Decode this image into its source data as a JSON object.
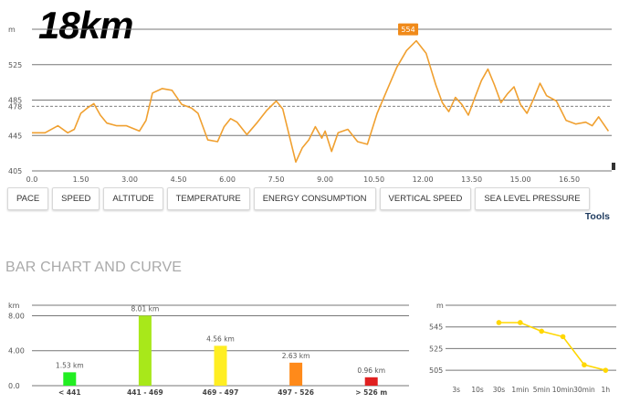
{
  "page_title": "18km",
  "tabs": [
    {
      "label": "PACE"
    },
    {
      "label": "SPEED"
    },
    {
      "label": "ALTITUDE"
    },
    {
      "label": "TEMPERATURE"
    },
    {
      "label": "ENERGY CONSUMPTION"
    },
    {
      "label": "VERTICAL SPEED"
    },
    {
      "label": "SEA LEVEL PRESSURE"
    }
  ],
  "tools_label": "Tools",
  "section_title": "BAR CHART AND CURVE",
  "colors": {
    "line": "#f0a030",
    "peak_badge": "#f08a1a",
    "curve": "#ffd700"
  },
  "chart_data": [
    {
      "type": "line",
      "yunit": "m",
      "ylim": [
        405,
        565
      ],
      "yticks": [
        405,
        445,
        485,
        525
      ],
      "ytick_labels": [
        "405",
        "445",
        "485",
        "525"
      ],
      "avg_line": {
        "value": 478,
        "label": "478"
      },
      "peak": {
        "value": 554,
        "label": "554",
        "x": 11.55
      },
      "xlim": [
        0,
        17.8
      ],
      "xticks": [
        0,
        1.5,
        3,
        4.5,
        6,
        7.5,
        9,
        10.5,
        12,
        13.5,
        15,
        16.5
      ],
      "xtick_labels": [
        "0.0",
        "1.50",
        "3.00",
        "4.50",
        "6.00",
        "7.50",
        "9.00",
        "10.50",
        "12.00",
        "13.50",
        "15.00",
        "16.50"
      ],
      "x": [
        0,
        0.4,
        0.8,
        1.1,
        1.3,
        1.5,
        1.7,
        1.9,
        2.1,
        2.3,
        2.6,
        2.9,
        3.1,
        3.3,
        3.5,
        3.7,
        4.0,
        4.3,
        4.6,
        4.9,
        5.1,
        5.4,
        5.7,
        5.9,
        6.1,
        6.3,
        6.6,
        6.9,
        7.2,
        7.5,
        7.7,
        8.0,
        8.1,
        8.3,
        8.5,
        8.7,
        8.9,
        9.0,
        9.2,
        9.4,
        9.7,
        10.0,
        10.3,
        10.6,
        10.9,
        11.2,
        11.5,
        11.8,
        12.1,
        12.4,
        12.6,
        12.8,
        13.0,
        13.2,
        13.4,
        13.6,
        13.8,
        14.0,
        14.2,
        14.4,
        14.6,
        14.8,
        15.0,
        15.2,
        15.4,
        15.6,
        15.8,
        16.1,
        16.4,
        16.7,
        17.0,
        17.2,
        17.4,
        17.7
      ],
      "y": [
        448,
        448,
        456,
        448,
        452,
        470,
        476,
        481,
        468,
        459,
        456,
        456,
        453,
        450,
        462,
        493,
        498,
        496,
        480,
        476,
        470,
        440,
        438,
        455,
        464,
        460,
        446,
        459,
        473,
        484,
        475,
        430,
        415,
        431,
        440,
        455,
        442,
        450,
        427,
        448,
        452,
        438,
        435,
        470,
        496,
        522,
        541,
        552,
        538,
        502,
        482,
        472,
        488,
        480,
        468,
        488,
        507,
        520,
        502,
        482,
        492,
        500,
        480,
        470,
        486,
        504,
        490,
        484,
        462,
        458,
        460,
        456,
        466,
        450
      ]
    },
    {
      "type": "bar",
      "yunit": "km",
      "ylim": [
        0,
        9.2
      ],
      "yticks": [
        0,
        4,
        8
      ],
      "ytick_labels": [
        "0.0",
        "4.00",
        "8.00"
      ],
      "categories": [
        "< 441",
        "441 - 469",
        "469 - 497",
        "497 - 526",
        "> 526 m"
      ],
      "values": [
        1.53,
        8.01,
        4.56,
        2.63,
        0.96
      ],
      "value_labels": [
        "1.53 km",
        "8.01 km",
        "4.56 km",
        "2.63 km",
        "0.96 km"
      ],
      "colors": [
        "#22ee22",
        "#a8e81a",
        "#ffee22",
        "#ff8a1a",
        "#e02020"
      ]
    },
    {
      "type": "line",
      "yunit": "m",
      "ylim": [
        495,
        565
      ],
      "yticks": [
        505,
        525,
        545
      ],
      "ytick_labels": [
        "505",
        "525",
        "545"
      ],
      "categories": [
        "3s",
        "10s",
        "30s",
        "1min",
        "5min",
        "10min",
        "30min",
        "1h"
      ],
      "values": [
        null,
        null,
        549,
        549,
        541,
        536,
        510,
        505
      ]
    }
  ]
}
